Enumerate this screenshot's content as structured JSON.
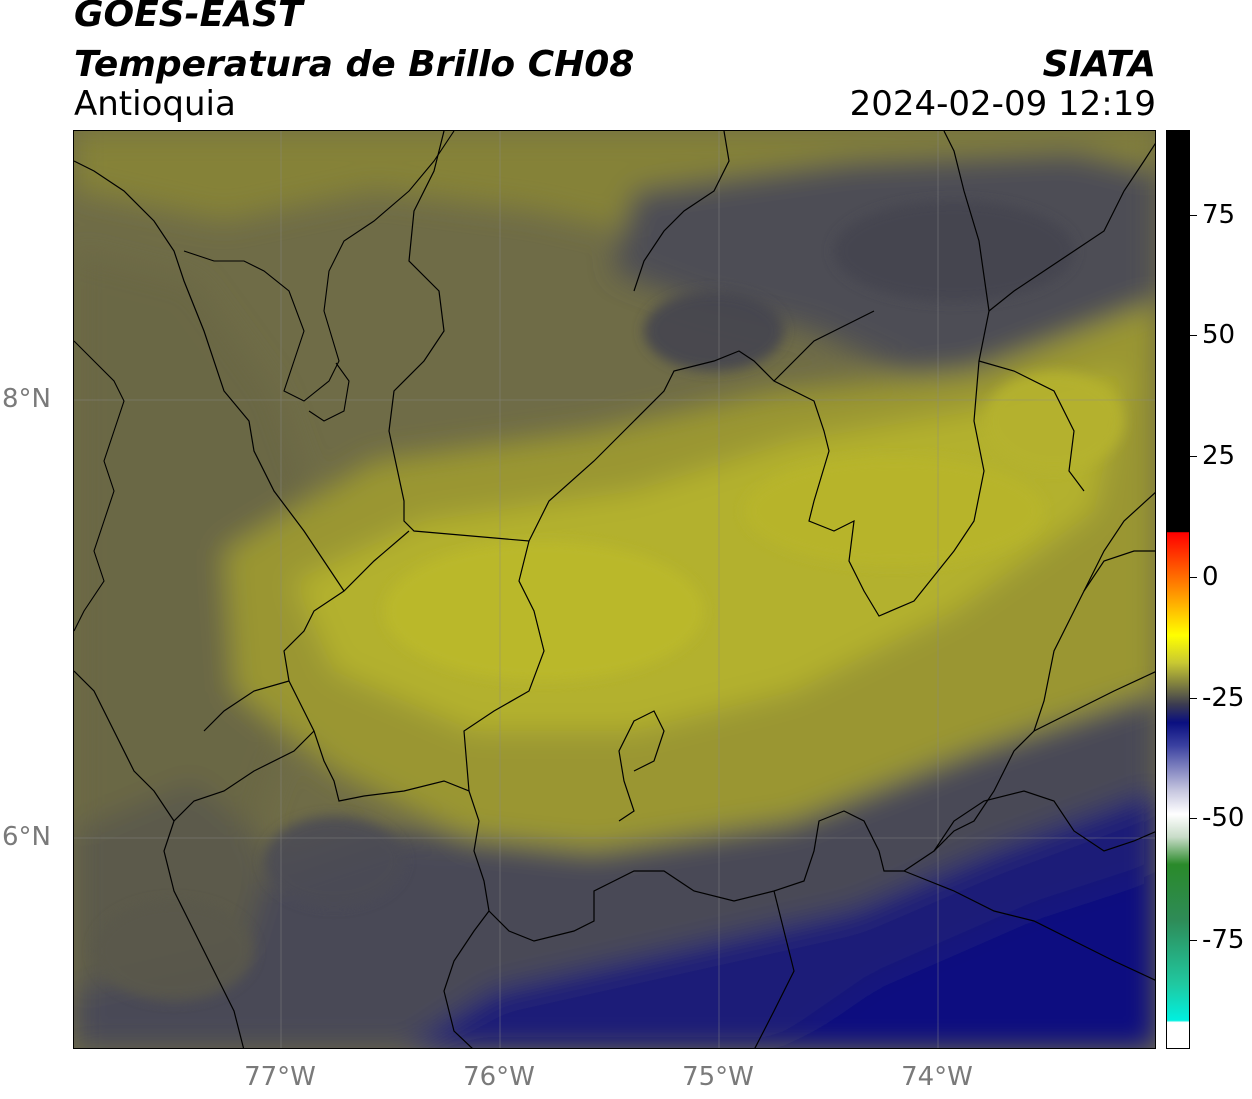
{
  "header": {
    "satellite": "GOES-EAST",
    "product": "Temperatura de Brillo CH08",
    "region": "Antioquia",
    "org": "SIATA",
    "datetime": "2024-02-09 12:19"
  },
  "lat_labels": [
    "8°N",
    "6°N"
  ],
  "lon_labels": [
    "77°W",
    "76°W",
    "75°W",
    "74°W"
  ],
  "colorbar_labels": [
    "75",
    "50",
    "25",
    "0",
    "-25",
    "-50",
    "-75"
  ],
  "colors": {
    "olive_light": "#b3b12e",
    "olive": "#8f8b3a",
    "dark_gray": "#4f4e52",
    "navy": "#0a0f80"
  }
}
